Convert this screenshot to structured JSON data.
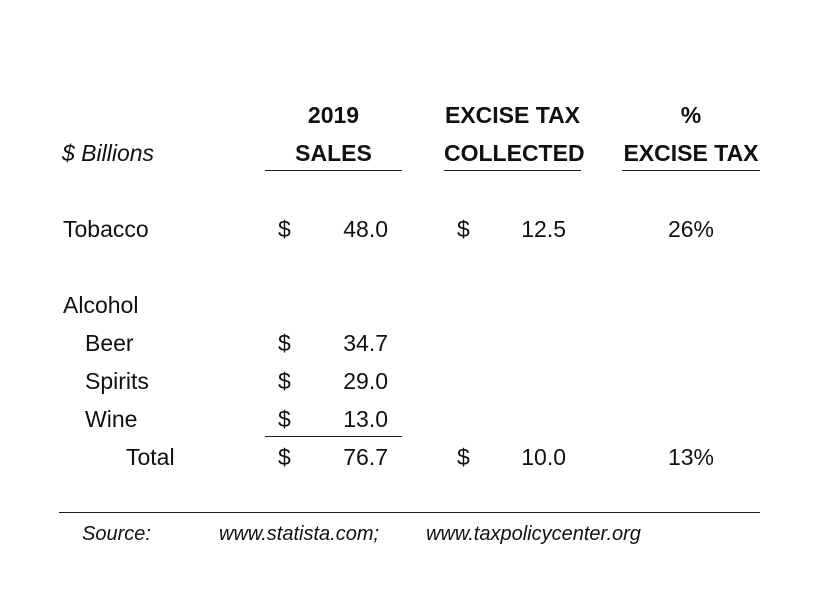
{
  "header": {
    "units_label": "$ Billions",
    "sales_line1": "2019",
    "sales_line2": "SALES",
    "excise_line1": "EXCISE TAX",
    "excise_line2": "COLLECTED",
    "pct_line1": "%",
    "pct_line2": "EXCISE TAX"
  },
  "rows": {
    "tobacco": {
      "label": "Tobacco",
      "sales_currency": "$",
      "sales": "48.0",
      "excise_currency": "$",
      "excise": "12.5",
      "pct": "26%"
    },
    "alcohol": {
      "label": "Alcohol"
    },
    "beer": {
      "label": "Beer",
      "sales_currency": "$",
      "sales": "34.7"
    },
    "spirits": {
      "label": "Spirits",
      "sales_currency": "$",
      "sales": "29.0"
    },
    "wine": {
      "label": "Wine",
      "sales_currency": "$",
      "sales": "13.0"
    },
    "total": {
      "label": "Total",
      "sales_currency": "$",
      "sales": "76.7",
      "excise_currency": "$",
      "excise": "10.0",
      "pct": "13%"
    }
  },
  "source": {
    "label": "Source:",
    "ref1": "www.statista.com;",
    "ref2": "www.taxpolicycenter.org"
  }
}
